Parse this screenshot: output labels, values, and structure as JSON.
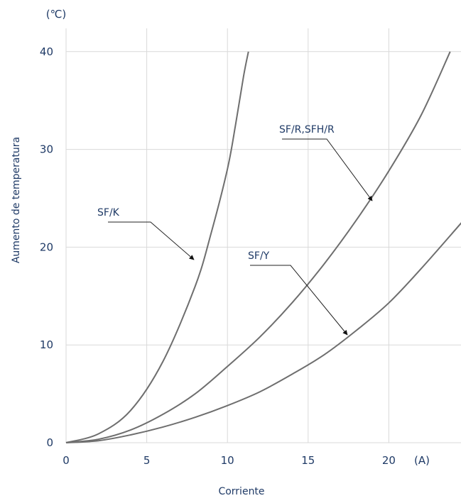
{
  "chart_data": {
    "type": "line",
    "title": "",
    "xlabel": "Corriente",
    "ylabel": "Aumento de temperatura",
    "x_unit": "(A)",
    "y_unit": "(℃)",
    "xlim": [
      0,
      24.5
    ],
    "ylim": [
      0,
      40
    ],
    "x_ticks": [
      0,
      5,
      10,
      15,
      20
    ],
    "y_ticks": [
      0,
      10,
      20,
      30,
      40
    ],
    "grid": true,
    "series": [
      {
        "name": "SF/K",
        "x": [
          0,
          2,
          4,
          6,
          8,
          9,
          10,
          10.5,
          11,
          11.3
        ],
        "y": [
          0,
          0.9,
          3.3,
          8.3,
          16.0,
          21.5,
          28.0,
          32.5,
          37.5,
          40.0
        ]
      },
      {
        "name": "SF/R,SFH/R",
        "x": [
          0,
          2,
          4,
          6,
          8,
          10,
          12,
          14,
          16,
          18,
          20,
          22,
          23.8
        ],
        "y": [
          0,
          0.35,
          1.3,
          2.9,
          5.0,
          7.8,
          10.8,
          14.3,
          18.3,
          22.8,
          27.8,
          33.5,
          40.0
        ]
      },
      {
        "name": "SF/Y",
        "x": [
          0,
          2,
          4,
          6,
          8,
          10,
          12,
          14,
          16,
          18,
          20,
          22,
          24.5
        ],
        "y": [
          0,
          0.2,
          0.8,
          1.6,
          2.6,
          3.8,
          5.2,
          7.0,
          9.0,
          11.5,
          14.3,
          17.8,
          22.5
        ]
      }
    ]
  }
}
